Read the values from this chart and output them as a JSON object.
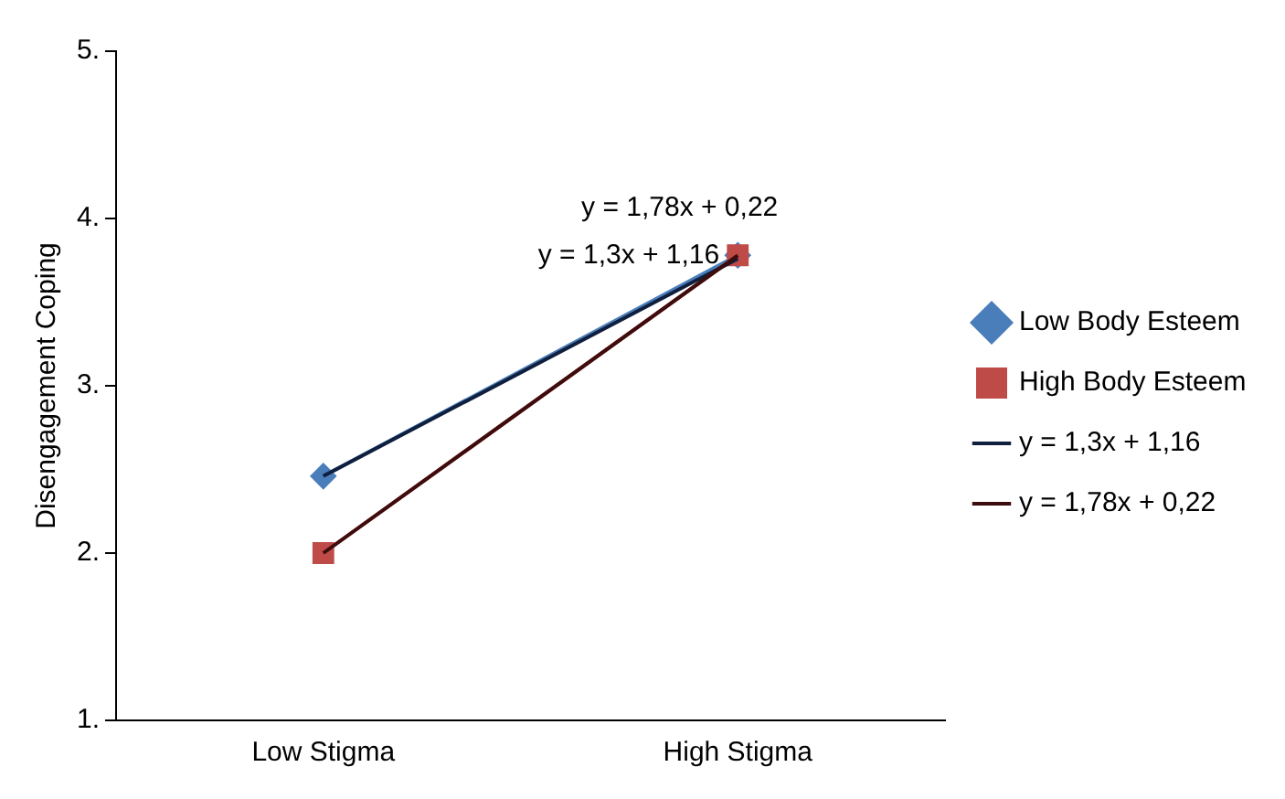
{
  "chart_data": {
    "type": "line",
    "ylabel": "Disengagement Coping",
    "categories": [
      "Low Stigma",
      "High Stigma"
    ],
    "series": [
      {
        "name": "Low Body Esteem",
        "color": "#4a7ebb",
        "values": [
          2.46,
          3.78
        ],
        "marker": "diamond"
      },
      {
        "name": "High Body Esteem",
        "color": "#be4b48",
        "values": [
          2.0,
          3.78
        ],
        "marker": "square"
      },
      {
        "name": "y = 1,3x + 1,16",
        "color": "#0f1f3d",
        "values": [
          2.46,
          3.76
        ],
        "marker": "none"
      },
      {
        "name": "y = 1,78x + 0,22",
        "color": "#3d0c0c",
        "values": [
          2.0,
          3.78
        ],
        "marker": "none"
      }
    ],
    "ylim": [
      1,
      5
    ],
    "yticks": [
      {
        "value": 1,
        "label": "1."
      },
      {
        "value": 2,
        "label": "2."
      },
      {
        "value": 3,
        "label": "3."
      },
      {
        "value": 4,
        "label": "4."
      },
      {
        "value": 5,
        "label": "5."
      }
    ],
    "grid": false,
    "legend": "right",
    "annotations": [
      "y = 1,78x + 0,22",
      "y = 1,3x + 1,16"
    ]
  }
}
